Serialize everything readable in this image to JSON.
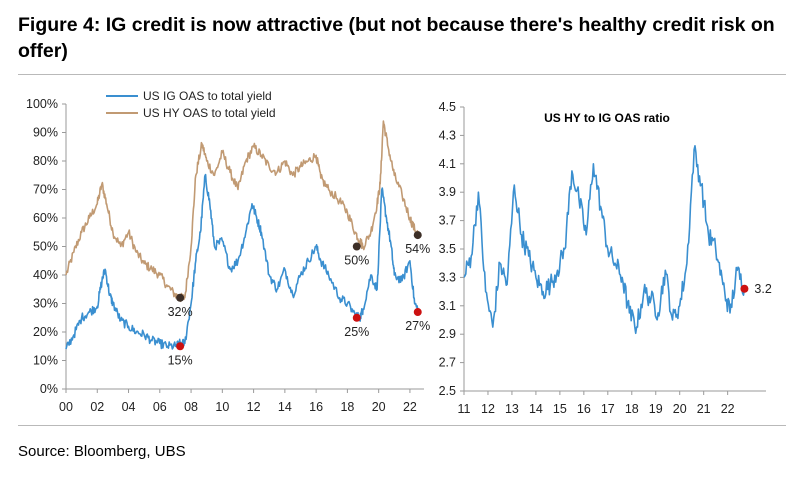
{
  "title": "Figure 4: IG credit is now attractive (but not because there's healthy credit risk on offer)",
  "source": "Source: Bloomberg, UBS",
  "colors": {
    "ig": "#3a8fd0",
    "hy": "#c19a73",
    "dot_red": "#cc1111",
    "dot_dark": "#3d2f27",
    "axis": "#9a9a9a"
  },
  "chart_data": [
    {
      "type": "line",
      "title": "",
      "xlabel": "",
      "ylabel": "",
      "xlim": [
        2000,
        2022.9
      ],
      "ylim": [
        0,
        100
      ],
      "x_ticks": [
        "00",
        "02",
        "04",
        "06",
        "08",
        "10",
        "12",
        "14",
        "16",
        "18",
        "20",
        "22"
      ],
      "y_ticks": [
        "0%",
        "10%",
        "20%",
        "30%",
        "40%",
        "50%",
        "60%",
        "70%",
        "80%",
        "90%",
        "100%"
      ],
      "legend": "top-left",
      "series": [
        {
          "name": "US IG OAS to total yield",
          "x": [
            2000,
            2000.5,
            2001,
            2001.5,
            2002,
            2002.3,
            2002.5,
            2002.8,
            2003,
            2003.5,
            2004,
            2004.5,
            2005,
            2005.5,
            2006,
            2006.5,
            2007,
            2007.3,
            2007.6,
            2008,
            2008.3,
            2008.6,
            2008.9,
            2009.2,
            2009.5,
            2010,
            2010.5,
            2011,
            2011.5,
            2011.9,
            2012.2,
            2012.5,
            2013,
            2013.5,
            2014,
            2014.5,
            2015,
            2015.5,
            2016,
            2016.3,
            2016.8,
            2017.5,
            2018,
            2018.5,
            2018.8,
            2019,
            2019.5,
            2019.9,
            2020.2,
            2020.5,
            2020.8,
            2021,
            2021.5,
            2022,
            2022.3,
            2022.6
          ],
          "values": [
            14,
            19,
            25,
            27,
            29,
            38,
            42,
            33,
            30,
            24,
            22,
            20,
            19,
            17,
            16,
            15,
            15,
            16,
            16,
            30,
            45,
            55,
            75,
            65,
            50,
            52,
            42,
            45,
            55,
            65,
            60,
            55,
            40,
            35,
            42,
            33,
            40,
            45,
            50,
            45,
            40,
            32,
            30,
            26,
            25,
            28,
            40,
            35,
            70,
            60,
            50,
            40,
            38,
            45,
            30,
            27
          ]
        },
        {
          "name": "US HY OAS to total yield",
          "x": [
            2000,
            2000.5,
            2001,
            2001.5,
            2002,
            2002.3,
            2002.6,
            2003,
            2003.5,
            2004,
            2004.5,
            2005,
            2005.5,
            2006,
            2006.5,
            2007,
            2007.3,
            2007.6,
            2008,
            2008.3,
            2008.7,
            2009,
            2009.5,
            2010,
            2010.5,
            2011,
            2011.5,
            2012,
            2012.5,
            2013,
            2013.5,
            2014,
            2014.5,
            2015,
            2015.5,
            2016,
            2016.3,
            2016.8,
            2017.5,
            2018,
            2018.5,
            2018.8,
            2019,
            2019.5,
            2019.9,
            2020.1,
            2020.3,
            2020.6,
            2021,
            2021.5,
            2022,
            2022.3,
            2022.6
          ],
          "values": [
            40,
            48,
            55,
            60,
            65,
            72,
            65,
            55,
            50,
            55,
            48,
            44,
            42,
            40,
            36,
            33,
            32,
            32,
            50,
            75,
            86,
            80,
            75,
            83,
            76,
            70,
            80,
            85,
            82,
            78,
            76,
            80,
            75,
            78,
            80,
            82,
            74,
            70,
            66,
            62,
            55,
            52,
            50,
            55,
            65,
            72,
            94,
            85,
            75,
            68,
            60,
            56,
            54
          ]
        }
      ],
      "annotations": [
        {
          "label": "15%",
          "x": 2007.3,
          "y": 15,
          "color": "red"
        },
        {
          "label": "32%",
          "x": 2007.3,
          "y": 32,
          "color": "dark"
        },
        {
          "label": "25%",
          "x": 2018.6,
          "y": 25,
          "color": "red"
        },
        {
          "label": "50%",
          "x": 2018.6,
          "y": 50,
          "color": "dark"
        },
        {
          "label": "27%",
          "x": 2022.5,
          "y": 27,
          "color": "red"
        },
        {
          "label": "54%",
          "x": 2022.5,
          "y": 54,
          "color": "dark"
        }
      ]
    },
    {
      "type": "line",
      "title": "US HY to IG OAS ratio",
      "xlabel": "",
      "ylabel": "",
      "xlim": [
        2011,
        2023.6
      ],
      "ylim": [
        2.5,
        4.5
      ],
      "x_ticks": [
        "11",
        "12",
        "13",
        "14",
        "15",
        "16",
        "17",
        "18",
        "19",
        "20",
        "21",
        "22"
      ],
      "y_ticks": [
        "2.5",
        "2.7",
        "2.9",
        "3.1",
        "3.3",
        "3.5",
        "3.7",
        "3.9",
        "4.1",
        "4.3",
        "4.5"
      ],
      "series": [
        {
          "name": "US HY to IG OAS ratio",
          "x": [
            2011,
            2011.3,
            2011.6,
            2011.9,
            2012.2,
            2012.5,
            2012.8,
            2013.1,
            2013.4,
            2013.7,
            2014,
            2014.3,
            2014.6,
            2014.9,
            2015.2,
            2015.5,
            2015.8,
            2016.1,
            2016.4,
            2016.7,
            2017,
            2017.3,
            2017.6,
            2017.9,
            2018.2,
            2018.5,
            2018.8,
            2019.1,
            2019.4,
            2019.7,
            2020,
            2020.3,
            2020.6,
            2020.9,
            2021.2,
            2021.5,
            2021.8,
            2022.1,
            2022.4,
            2022.7
          ],
          "values": [
            3.3,
            3.45,
            3.9,
            3.2,
            2.95,
            3.4,
            3.25,
            3.95,
            3.6,
            3.45,
            3.3,
            3.2,
            3.25,
            3.35,
            3.5,
            4.05,
            3.85,
            3.6,
            4.1,
            3.8,
            3.5,
            3.4,
            3.3,
            3.05,
            2.95,
            3.2,
            3.15,
            3.05,
            3.35,
            3.0,
            3.1,
            3.4,
            4.2,
            3.95,
            3.6,
            3.5,
            3.25,
            3.05,
            3.35,
            3.22
          ]
        }
      ],
      "annotations": [
        {
          "label": "3.2",
          "x": 2022.7,
          "y": 3.22,
          "color": "red"
        }
      ]
    }
  ]
}
